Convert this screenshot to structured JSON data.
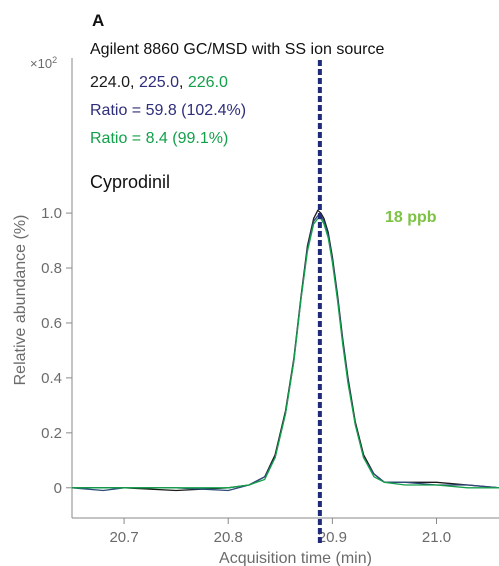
{
  "chart_data": {
    "type": "line",
    "panel_label": "A",
    "title": "Agilent 8860 GC/MSD with SS ion source",
    "compound": "Cyprodinil",
    "concentration": "18 ppb",
    "xlabel": "Acquisition time (min)",
    "ylabel": "Relative abundance (%)",
    "y_multiplier": "×10",
    "y_multiplier_exp": "2",
    "xlim": [
      20.65,
      21.06
    ],
    "ylim": [
      -0.11,
      1.55
    ],
    "xticks": [
      20.7,
      20.8,
      20.9,
      21.0
    ],
    "xtick_labels": [
      "20.7",
      "20.8",
      "20.9",
      "21.0"
    ],
    "yticks": [
      0,
      0.2,
      0.4,
      0.6,
      0.8,
      1.0
    ],
    "ytick_labels": [
      "0",
      "0.2",
      "0.4",
      "0.6",
      "0.8",
      "1.0"
    ],
    "retention_time_marker": 20.888,
    "ions": [
      {
        "label": "224.0",
        "color": "#1a1a1a"
      },
      {
        "label": "225.0",
        "color": "#2e2e7a"
      },
      {
        "label": "226.0",
        "color": "#13a04a"
      }
    ],
    "ion_separators": [
      ", ",
      ", "
    ],
    "ratios": [
      {
        "text": "Ratio = 59.8 (102.4%)",
        "color": "#2e2e7a"
      },
      {
        "text": "Ratio = 8.4 (99.1%)",
        "color": "#13a04a"
      }
    ],
    "concentration_color": "#7cc243",
    "marker_color": "#1f2a78",
    "series": [
      {
        "color": "#1a1a1a",
        "x": [
          20.65,
          20.68,
          20.7,
          20.75,
          20.8,
          20.82,
          20.835,
          20.845,
          20.855,
          20.863,
          20.87,
          20.876,
          20.882,
          20.886,
          20.889,
          20.892,
          20.896,
          20.9,
          20.905,
          20.91,
          20.915,
          20.922,
          20.93,
          20.94,
          20.95,
          20.97,
          21.0,
          21.03,
          21.06
        ],
        "y": [
          0.0,
          0.0,
          0.0,
          -0.01,
          0.0,
          0.01,
          0.04,
          0.12,
          0.28,
          0.47,
          0.7,
          0.88,
          0.98,
          1.01,
          1.0,
          0.98,
          0.93,
          0.84,
          0.7,
          0.54,
          0.4,
          0.24,
          0.12,
          0.05,
          0.02,
          0.02,
          0.02,
          0.01,
          0.0
        ]
      },
      {
        "color": "#2e4a7a",
        "x": [
          20.65,
          20.68,
          20.7,
          20.75,
          20.8,
          20.82,
          20.835,
          20.845,
          20.855,
          20.863,
          20.87,
          20.876,
          20.882,
          20.886,
          20.889,
          20.892,
          20.896,
          20.9,
          20.905,
          20.91,
          20.915,
          20.922,
          20.93,
          20.94,
          20.95,
          20.97,
          21.0,
          21.03,
          21.06
        ],
        "y": [
          0.0,
          -0.01,
          0.0,
          0.0,
          -0.01,
          0.01,
          0.04,
          0.11,
          0.27,
          0.46,
          0.69,
          0.87,
          0.97,
          0.99,
          0.99,
          0.97,
          0.92,
          0.83,
          0.69,
          0.53,
          0.39,
          0.23,
          0.11,
          0.05,
          0.02,
          0.02,
          0.01,
          0.01,
          0.0
        ]
      },
      {
        "color": "#13a04a",
        "x": [
          20.65,
          20.68,
          20.7,
          20.75,
          20.8,
          20.82,
          20.835,
          20.845,
          20.855,
          20.863,
          20.87,
          20.876,
          20.882,
          20.886,
          20.889,
          20.892,
          20.896,
          20.9,
          20.905,
          20.91,
          20.915,
          20.922,
          20.93,
          20.94,
          20.95,
          20.97,
          21.0,
          21.03,
          21.06
        ],
        "y": [
          0.0,
          0.0,
          0.0,
          0.0,
          0.0,
          0.01,
          0.03,
          0.11,
          0.27,
          0.46,
          0.69,
          0.86,
          0.96,
          0.98,
          0.98,
          0.96,
          0.91,
          0.82,
          0.68,
          0.52,
          0.38,
          0.23,
          0.11,
          0.04,
          0.02,
          0.01,
          0.01,
          0.0,
          0.0
        ]
      }
    ]
  }
}
